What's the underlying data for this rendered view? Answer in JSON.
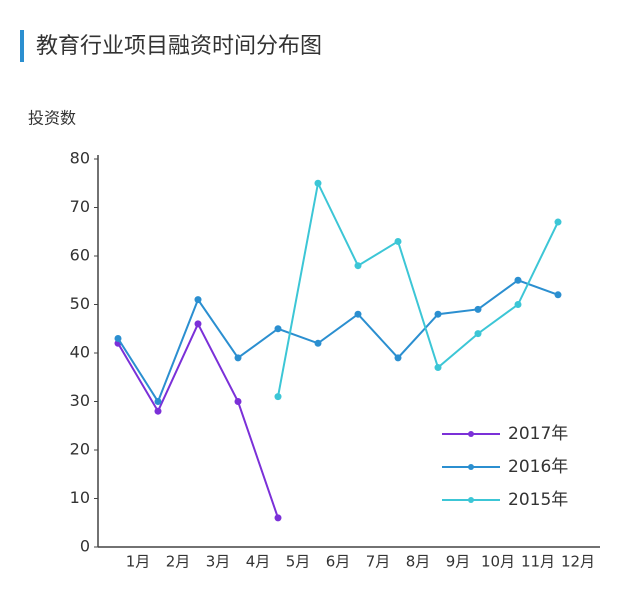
{
  "chart_data": {
    "type": "line",
    "title": "教育行业项目融资时间分布图",
    "ylabel": "投资数",
    "categories": [
      "1月",
      "2月",
      "3月",
      "4月",
      "5月",
      "6月",
      "7月",
      "8月",
      "9月",
      "10月",
      "11月",
      "12月"
    ],
    "series": [
      {
        "name": "2017年",
        "color": "#7b30d8",
        "values": [
          42,
          28,
          46,
          30,
          6,
          null,
          null,
          null,
          null,
          null,
          null,
          null
        ]
      },
      {
        "name": "2016年",
        "color": "#2b8fd0",
        "values": [
          43,
          30,
          51,
          39,
          45,
          42,
          48,
          39,
          48,
          49,
          55,
          52
        ]
      },
      {
        "name": "2015年",
        "color": "#3cc6d6",
        "values": [
          null,
          null,
          null,
          null,
          31,
          75,
          58,
          63,
          37,
          44,
          50,
          67
        ]
      }
    ],
    "ylim": [
      0,
      80
    ],
    "yticks": [
      0,
      10,
      20,
      30,
      40,
      50,
      60,
      70,
      80
    ]
  }
}
